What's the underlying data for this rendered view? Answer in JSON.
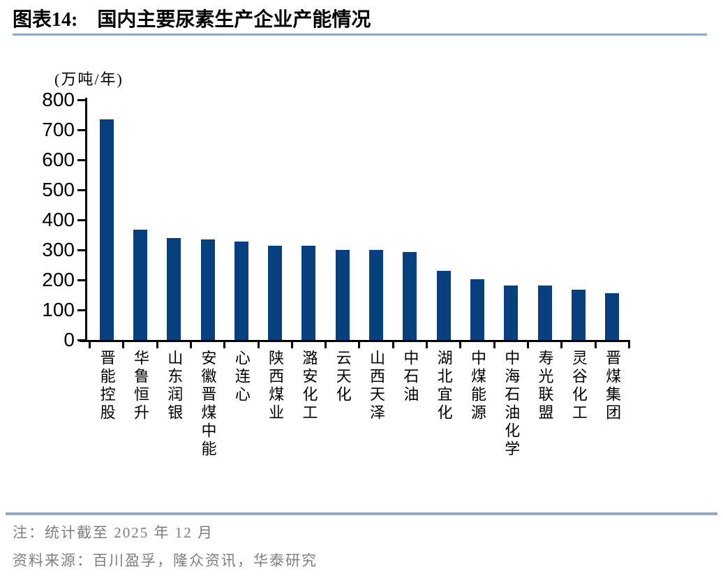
{
  "header": {
    "figure_label": "图表14:",
    "title": "国内主要尿素生产企业产能情况"
  },
  "chart_data": {
    "type": "bar",
    "title": "国内主要尿素生产企业产能情况",
    "unit_label": "(万吨/年)",
    "categories": [
      "晋能控股",
      "华鲁恒升",
      "山东润银",
      "安徽晋煤中能",
      "心连心",
      "陕西煤业",
      "潞安化工",
      "云天化",
      "山西天泽",
      "中石油",
      "湖北宜化",
      "中煤能源",
      "中海石油化学",
      "寿光联盟",
      "灵谷化工",
      "晋煤集团"
    ],
    "values": [
      735,
      368,
      340,
      334,
      327,
      314,
      313,
      300,
      300,
      292,
      230,
      202,
      181,
      181,
      168,
      155
    ],
    "ylim": [
      0,
      800
    ],
    "ytick_step": 100,
    "bar_color": "#06407f",
    "grid": false,
    "legend_position": "none",
    "xlabel": "",
    "ylabel": "(万吨/年)"
  },
  "footer": {
    "note": "注：统计截至 2025 年 12 月",
    "source": "资料来源：百川盈孚，隆众资讯，华泰研究"
  },
  "colors": {
    "bar": "#06407f",
    "accent_line": "#93aac6",
    "note_text": "#7e7e7e",
    "axis": "#000000"
  }
}
